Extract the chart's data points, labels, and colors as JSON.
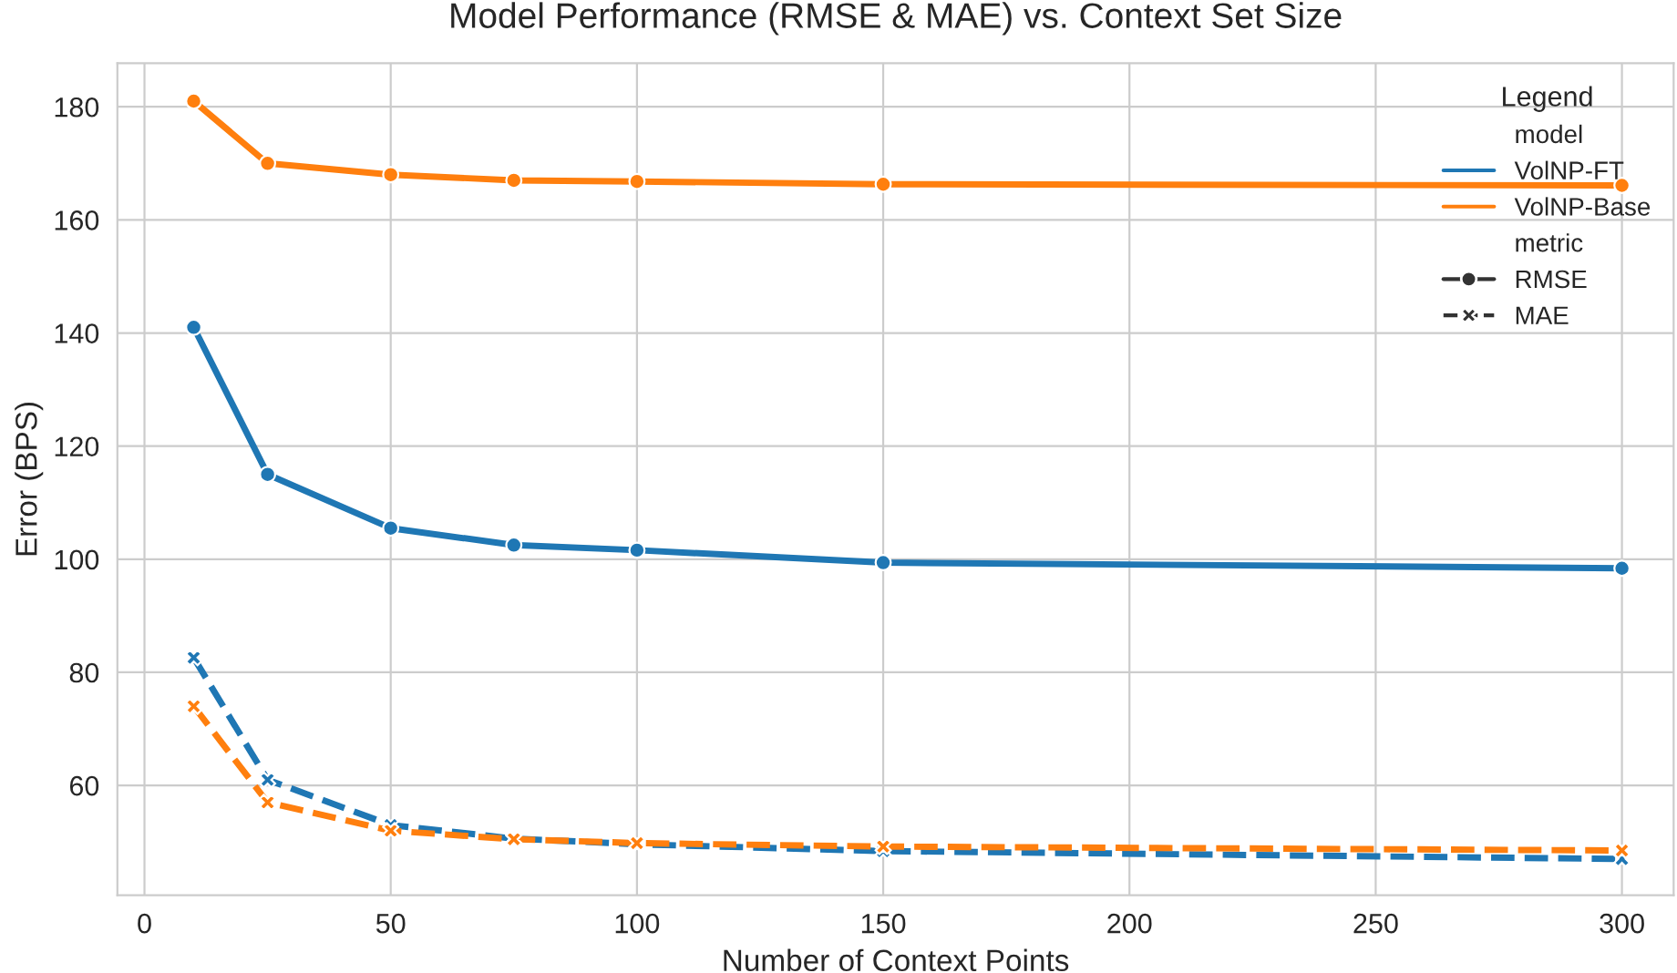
{
  "chart_data": {
    "type": "line",
    "title": "Model Performance (RMSE & MAE) vs. Context Set Size",
    "xlabel": "Number of Context Points",
    "ylabel": "Error (BPS)",
    "legend_title": "Legend",
    "annotations": [
      "model",
      "metric",
      "RMSE",
      "MAE"
    ],
    "x": [
      10,
      25,
      50,
      75,
      100,
      150,
      300
    ],
    "series": [
      {
        "name": "VolNP-FT",
        "color": "#1f77b4",
        "marker": "circle",
        "line_style": "solid",
        "values": [
          141,
          115,
          105.5,
          102.5,
          101.6,
          99.4,
          98.4
        ]
      },
      {
        "name": "VolNP-Base",
        "color": "#ff7f0e",
        "marker": "circle",
        "line_style": "solid",
        "values": [
          181,
          170,
          168,
          167,
          166.8,
          166.3,
          166.1
        ]
      },
      {
        "color": "#1f77b4",
        "marker": "cross",
        "line_style": "dashed",
        "values": [
          82.6,
          61,
          53,
          50.6,
          49.6,
          48.4,
          47
        ]
      },
      {
        "color": "#ff7f0e",
        "marker": "cross",
        "line_style": "dashed",
        "values": [
          74,
          57,
          52,
          50.5,
          49.8,
          49.2,
          48.5
        ]
      }
    ],
    "xlim": [
      -5.5,
      310.5
    ],
    "ylim": [
      40.6,
      187.7
    ],
    "xticks": [
      0,
      50,
      100,
      150,
      200,
      250,
      300
    ],
    "yticks": [
      60,
      80,
      100,
      120,
      140,
      160,
      180
    ],
    "grid": true,
    "legend": "top right"
  }
}
